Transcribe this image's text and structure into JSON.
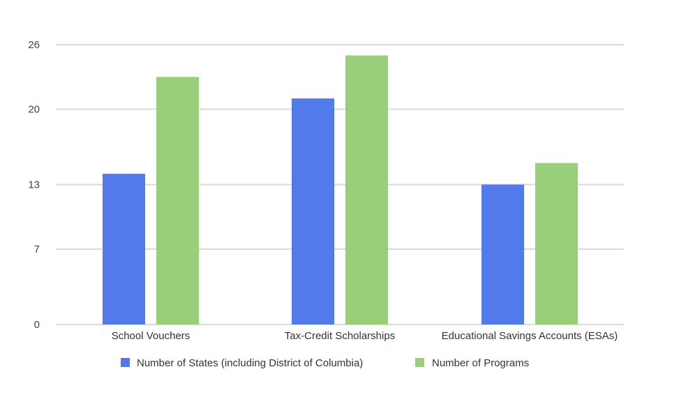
{
  "chart_data": {
    "type": "bar",
    "title": "",
    "xlabel": "",
    "ylabel": "",
    "categories": [
      "School Vouchers",
      "Tax-Credit Scholarships",
      "Educational Savings Accounts (ESAs)"
    ],
    "series": [
      {
        "name": "Number of States (including District of Columbia)",
        "values": [
          14,
          21,
          13
        ],
        "color": "#527AEB"
      },
      {
        "name": "Number of Programs",
        "values": [
          23,
          25,
          15
        ],
        "color": "#9ACF7A"
      }
    ],
    "ylim": [
      0,
      26
    ],
    "yticks": [
      0,
      7,
      13,
      20,
      26
    ],
    "ytick_labels": [
      "0",
      "7",
      "13",
      "20",
      "26"
    ],
    "grid": true,
    "legend_position": "bottom"
  }
}
